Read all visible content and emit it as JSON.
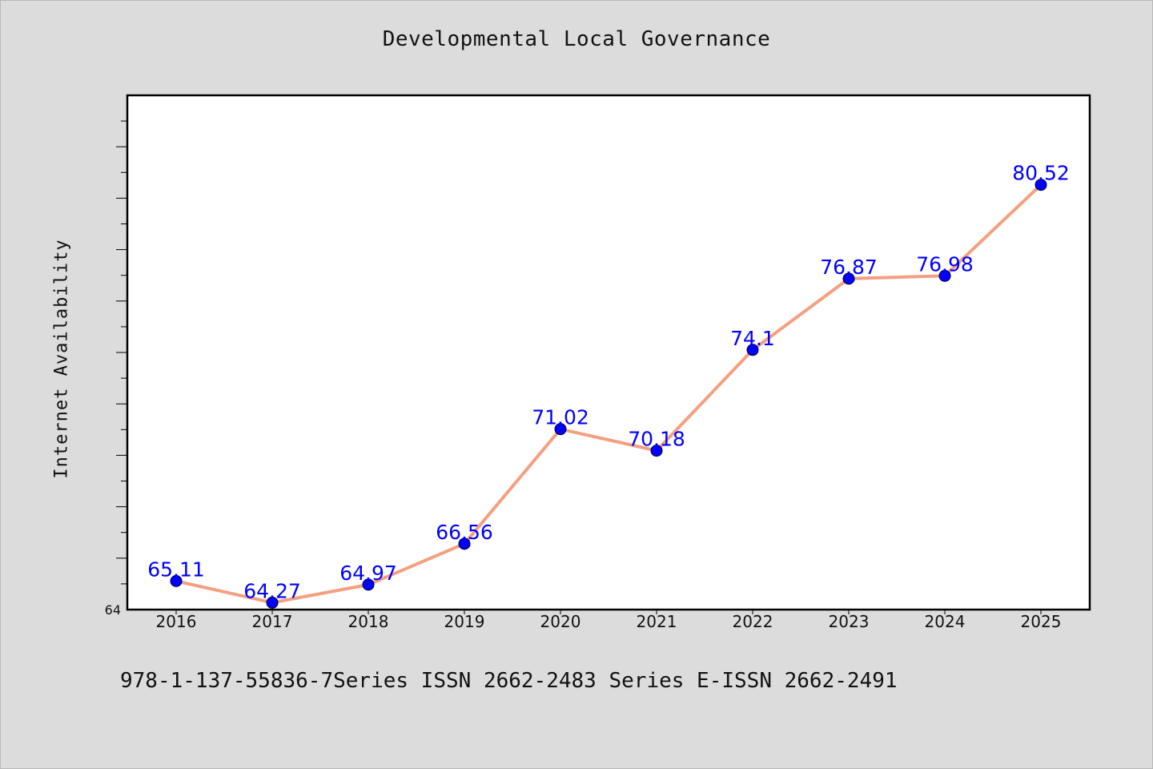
{
  "title": "Developmental Local Governance",
  "footer": "978-1-137-55836-7Series ISSN 2662-2483 Series E-ISSN 2662-2491",
  "chart_data": {
    "type": "line",
    "title": "Developmental Local Governance",
    "xlabel": "",
    "ylabel": "Internet Availability",
    "x": [
      "2016",
      "2017",
      "2018",
      "2019",
      "2020",
      "2021",
      "2022",
      "2023",
      "2024",
      "2025"
    ],
    "series": [
      {
        "values": [
          65.11,
          64.27,
          64.97,
          66.56,
          71.02,
          70.18,
          74.1,
          76.87,
          76.98,
          80.52
        ],
        "data_labels": [
          "65.11",
          "64.27",
          "64.97",
          "66.56",
          "71.02",
          "70.18",
          "74.1",
          "76.87",
          "76.98",
          "80.52"
        ]
      }
    ],
    "ylim": [
      64,
      84
    ],
    "y_tick_labels": [
      "64"
    ],
    "grid": false,
    "legend": "none",
    "colors": {
      "line": "#f4a080",
      "marker": "#0000ff",
      "data_label": "#0000ff",
      "plot_background": "#ffffff",
      "figure_background": "#dcdcdc"
    }
  }
}
